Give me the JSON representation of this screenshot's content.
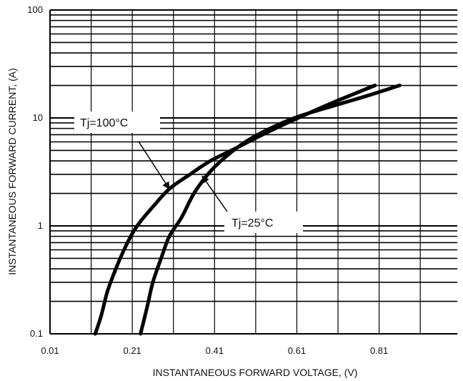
{
  "chart_data": {
    "type": "line",
    "title": "",
    "xlabel": "INSTANTANEOUS FORWARD VOLTAGE, (V)",
    "ylabel": "INSTANTANEOUS FORWARD CURRENT, (A)",
    "x_scale": "linear",
    "y_scale": "log",
    "xlim": [
      0.01,
      1.0
    ],
    "ylim": [
      0.1,
      100
    ],
    "x_ticks": [
      "0.01",
      "0.21",
      "0.41",
      "0.61",
      "0.81"
    ],
    "y_ticks": [
      "0.1",
      "1",
      "10",
      "100"
    ],
    "grid": true,
    "series": [
      {
        "name": "Tj=100°C",
        "x": [
          0.12,
          0.135,
          0.15,
          0.17,
          0.19,
          0.21,
          0.23,
          0.26,
          0.3,
          0.35,
          0.4,
          0.46,
          0.52,
          0.6,
          0.7,
          0.8
        ],
        "y": [
          0.1,
          0.15,
          0.25,
          0.4,
          0.6,
          0.85,
          1.1,
          1.5,
          2.2,
          3.0,
          4.0,
          5.2,
          6.8,
          9.5,
          14,
          20
        ]
      },
      {
        "name": "Tj=25°C",
        "x": [
          0.23,
          0.245,
          0.26,
          0.28,
          0.3,
          0.33,
          0.36,
          0.4,
          0.45,
          0.5,
          0.56,
          0.62,
          0.7,
          0.78,
          0.86
        ],
        "y": [
          0.1,
          0.17,
          0.3,
          0.5,
          0.8,
          1.2,
          2.0,
          3.2,
          4.8,
          6.5,
          8.5,
          10.5,
          13,
          16,
          20
        ]
      }
    ],
    "annotations": [
      {
        "text": "Tj=100°C",
        "series": 0,
        "point_to": [
          0.3,
          2.2
        ]
      },
      {
        "text": "Tj=25°C",
        "series": 1,
        "point_to": [
          0.38,
          2.9
        ]
      }
    ]
  }
}
